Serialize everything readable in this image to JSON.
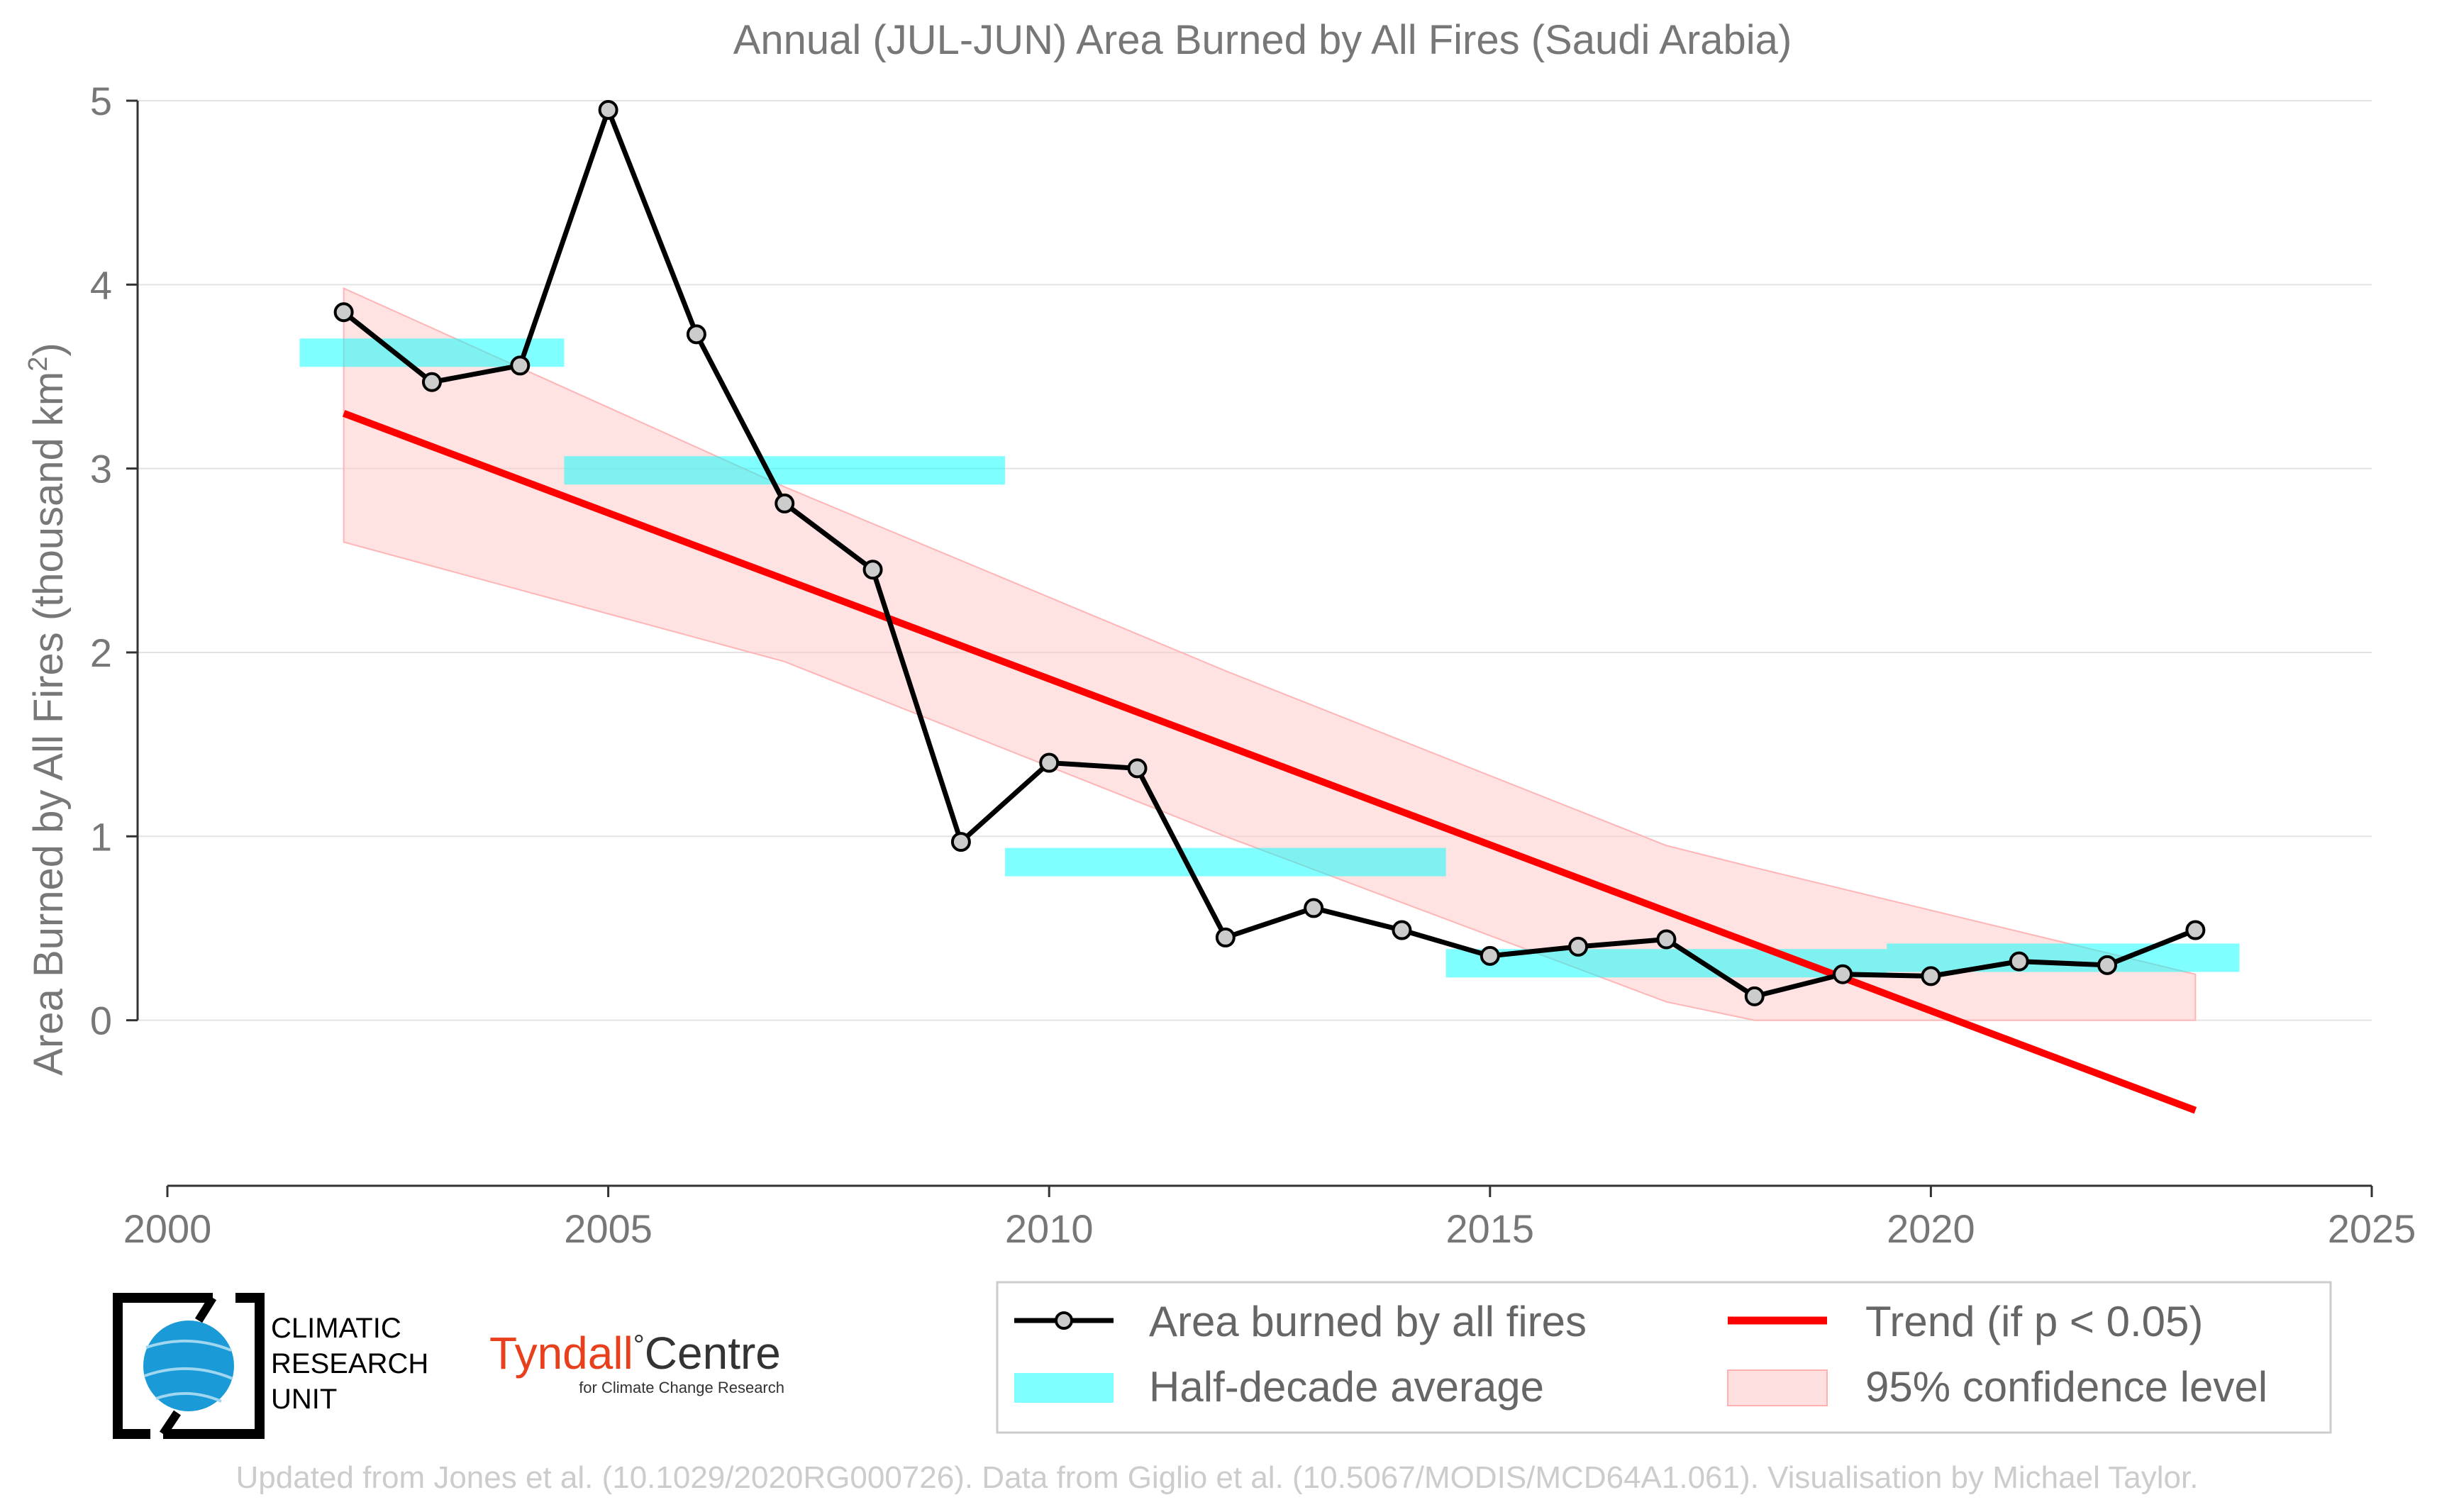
{
  "chart_data": {
    "type": "line",
    "title": "Annual (JUL-JUN) Area Burned by All Fires (Saudi Arabia)",
    "ylabel": "Area Burned by All Fires (thousand km²)",
    "ylabel_main": "Area Burned by All Fires (thousand km",
    "ylabel_sup": "2",
    "ylabel_end": ")",
    "xlabel": "",
    "xlim": [
      2000,
      2025
    ],
    "ylim": [
      -0.9,
      5
    ],
    "x_ticks": [
      2000,
      2005,
      2010,
      2015,
      2020,
      2025
    ],
    "y_ticks": [
      0,
      1,
      2,
      3,
      4,
      5
    ],
    "grid": "horizontal",
    "legend_position": "bottom-right",
    "series": [
      {
        "name": "Area burned by all fires",
        "color": "#000000",
        "marker_fill": "#cccccc",
        "x": [
          2002,
          2003,
          2004,
          2005,
          2006,
          2007,
          2008,
          2009,
          2010,
          2011,
          2012,
          2013,
          2014,
          2015,
          2016,
          2017,
          2018,
          2019,
          2020,
          2021,
          2022,
          2023
        ],
        "values": [
          3.85,
          3.47,
          3.56,
          4.95,
          3.73,
          2.81,
          2.45,
          0.97,
          1.4,
          1.37,
          0.45,
          0.61,
          0.49,
          0.35,
          0.4,
          0.44,
          0.13,
          0.25,
          0.24,
          0.32,
          0.3,
          0.49
        ]
      }
    ],
    "half_decade_average": {
      "name": "Half-decade average",
      "color": "#00ffff",
      "segments": [
        {
          "x_start": 2001.5,
          "x_end": 2004.5,
          "value": 3.63
        },
        {
          "x_start": 2004.5,
          "x_end": 2009.5,
          "value": 2.99
        },
        {
          "x_start": 2009.5,
          "x_end": 2014.5,
          "value": 0.86
        },
        {
          "x_start": 2014.5,
          "x_end": 2019.5,
          "value": 0.31
        },
        {
          "x_start": 2019.5,
          "x_end": 2023.5,
          "value": 0.34
        }
      ]
    },
    "trend": {
      "name": "Trend (if p < 0.05)",
      "color": "#ff0000",
      "x": [
        2002,
        2023
      ],
      "values": [
        3.3,
        -0.49
      ]
    },
    "confidence": {
      "name": "95% confidence level",
      "color": "#ffcccc",
      "x": [
        2002,
        2007,
        2012,
        2017,
        2018,
        2023
      ],
      "upper": [
        3.98,
        2.9,
        1.9,
        0.95,
        0.83,
        0.25
      ],
      "lower": [
        2.6,
        1.95,
        1.0,
        0.1,
        0.0,
        0.0
      ]
    }
  },
  "legend": {
    "items": [
      {
        "label": "Area burned by all fires"
      },
      {
        "label": "Trend (if p < 0.05)"
      },
      {
        "label": "Half-decade average"
      },
      {
        "label": "95% confidence level"
      }
    ]
  },
  "logos": {
    "cru": {
      "line1": "CLIMATIC",
      "line2": "RESEARCH",
      "line3": "UNIT"
    },
    "tyndall": {
      "name_a": "Tyndall",
      "degree": "°",
      "name_b": "Centre",
      "sub": "for Climate Change Research"
    }
  },
  "footer": {
    "text": "Updated from Jones et al. (10.1029/2020RG000726). Data from Giglio et al. (10.5067/MODIS/MCD64A1.061). Visualisation by Michael Taylor."
  }
}
